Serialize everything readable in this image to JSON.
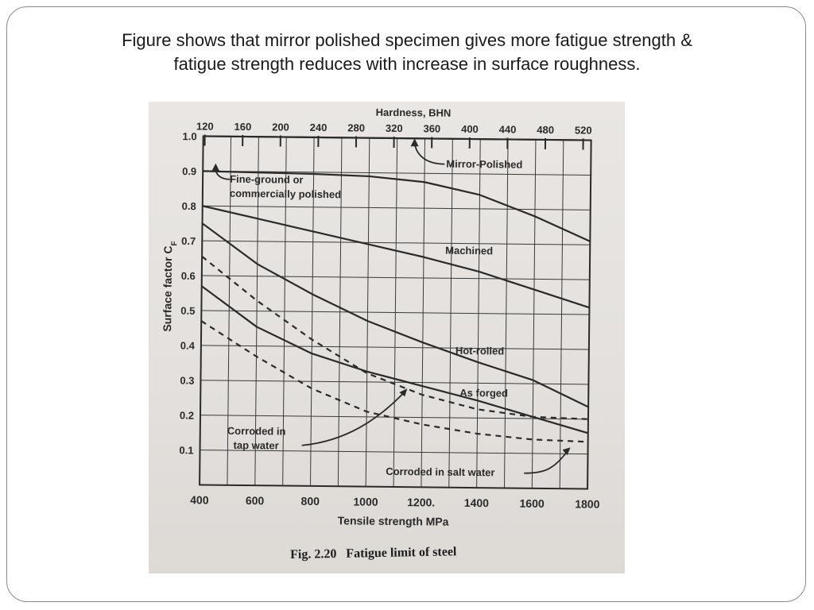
{
  "slide": {
    "title_line1": "Figure shows that mirror polished specimen gives more fatigue strength &",
    "title_line2": "fatigue strength reduces with increase in surface roughness."
  },
  "figure": {
    "number": "Fig. 2.20",
    "caption": "Fatigue limit of steel"
  },
  "chart_data": {
    "type": "line",
    "title": "",
    "xlabel": "Tensile strength MPa",
    "ylabel": "Surface factor C",
    "ylabel_subscript": "F",
    "secondary_xlabel": "Hardness, BHN",
    "xlim": [
      400,
      1800
    ],
    "ylim": [
      0,
      1.0
    ],
    "x_ticks": [
      400,
      600,
      800,
      1000,
      1200,
      1400,
      1600,
      1800
    ],
    "x_tick_labels": [
      "400",
      "600",
      "800",
      "1000",
      "1200.",
      "1400",
      "1600",
      "1800"
    ],
    "y_ticks": [
      0.1,
      0.2,
      0.3,
      0.4,
      0.5,
      0.6,
      0.7,
      0.8,
      0.9,
      1.0
    ],
    "y_tick_labels": [
      "0.1",
      "0.2",
      "0.3",
      "0.4",
      "0.5",
      "0.6",
      "0.7",
      "0.8",
      "0.9",
      "1.0"
    ],
    "hardness_ticks": [
      120,
      160,
      200,
      240,
      280,
      320,
      360,
      400,
      440,
      480,
      520
    ],
    "hardness_tick_labels": [
      "120",
      "160",
      "200",
      "240",
      "280",
      "320",
      "360",
      "400",
      "440",
      "480",
      "520"
    ],
    "grid": true,
    "series": [
      {
        "name": "Mirror-Polished",
        "style": "solid",
        "x": [
          400,
          1800
        ],
        "y": [
          1.0,
          1.0
        ]
      },
      {
        "name": "Fine-ground or commercially polished",
        "style": "solid",
        "x": [
          400,
          800,
          1000,
          1200,
          1400,
          1600,
          1800
        ],
        "y": [
          0.9,
          0.895,
          0.89,
          0.875,
          0.84,
          0.78,
          0.71
        ]
      },
      {
        "name": "Machined",
        "style": "solid",
        "x": [
          400,
          600,
          800,
          1000,
          1200,
          1400,
          1600,
          1800
        ],
        "y": [
          0.8,
          0.765,
          0.73,
          0.695,
          0.66,
          0.62,
          0.57,
          0.52
        ]
      },
      {
        "name": "Hot-rolled",
        "style": "solid",
        "x": [
          400,
          600,
          800,
          1000,
          1200,
          1400,
          1600,
          1800
        ],
        "y": [
          0.75,
          0.635,
          0.55,
          0.475,
          0.415,
          0.36,
          0.31,
          0.235
        ]
      },
      {
        "name": "As forged",
        "style": "solid",
        "x": [
          400,
          600,
          800,
          1000,
          1200,
          1400,
          1600,
          1800
        ],
        "y": [
          0.57,
          0.455,
          0.38,
          0.33,
          0.29,
          0.25,
          0.205,
          0.16
        ]
      },
      {
        "name": "Corroded in tap water",
        "style": "dashed",
        "x": [
          400,
          600,
          800,
          1000,
          1200,
          1400,
          1600,
          1800
        ],
        "y": [
          0.655,
          0.53,
          0.42,
          0.325,
          0.265,
          0.225,
          0.205,
          0.2
        ]
      },
      {
        "name": "Corroded in salt water",
        "style": "dashed",
        "x": [
          400,
          600,
          800,
          1000,
          1200,
          1400,
          1600,
          1800
        ],
        "y": [
          0.47,
          0.37,
          0.28,
          0.215,
          0.18,
          0.155,
          0.14,
          0.135
        ]
      }
    ],
    "annotations": [
      {
        "text": "Mirror-Polished"
      },
      {
        "text": "Fine-ground or"
      },
      {
        "text": "commercially polished"
      },
      {
        "text": "Machined"
      },
      {
        "text": "Hot-rolled"
      },
      {
        "text": "As forged"
      },
      {
        "text": "Corroded in"
      },
      {
        "text": "tap water"
      },
      {
        "text": "Corroded in salt water"
      }
    ],
    "colors": {
      "ink": "#2a2a2a",
      "grid": "#3a3a3a",
      "paper": "#e6e3e0"
    }
  }
}
